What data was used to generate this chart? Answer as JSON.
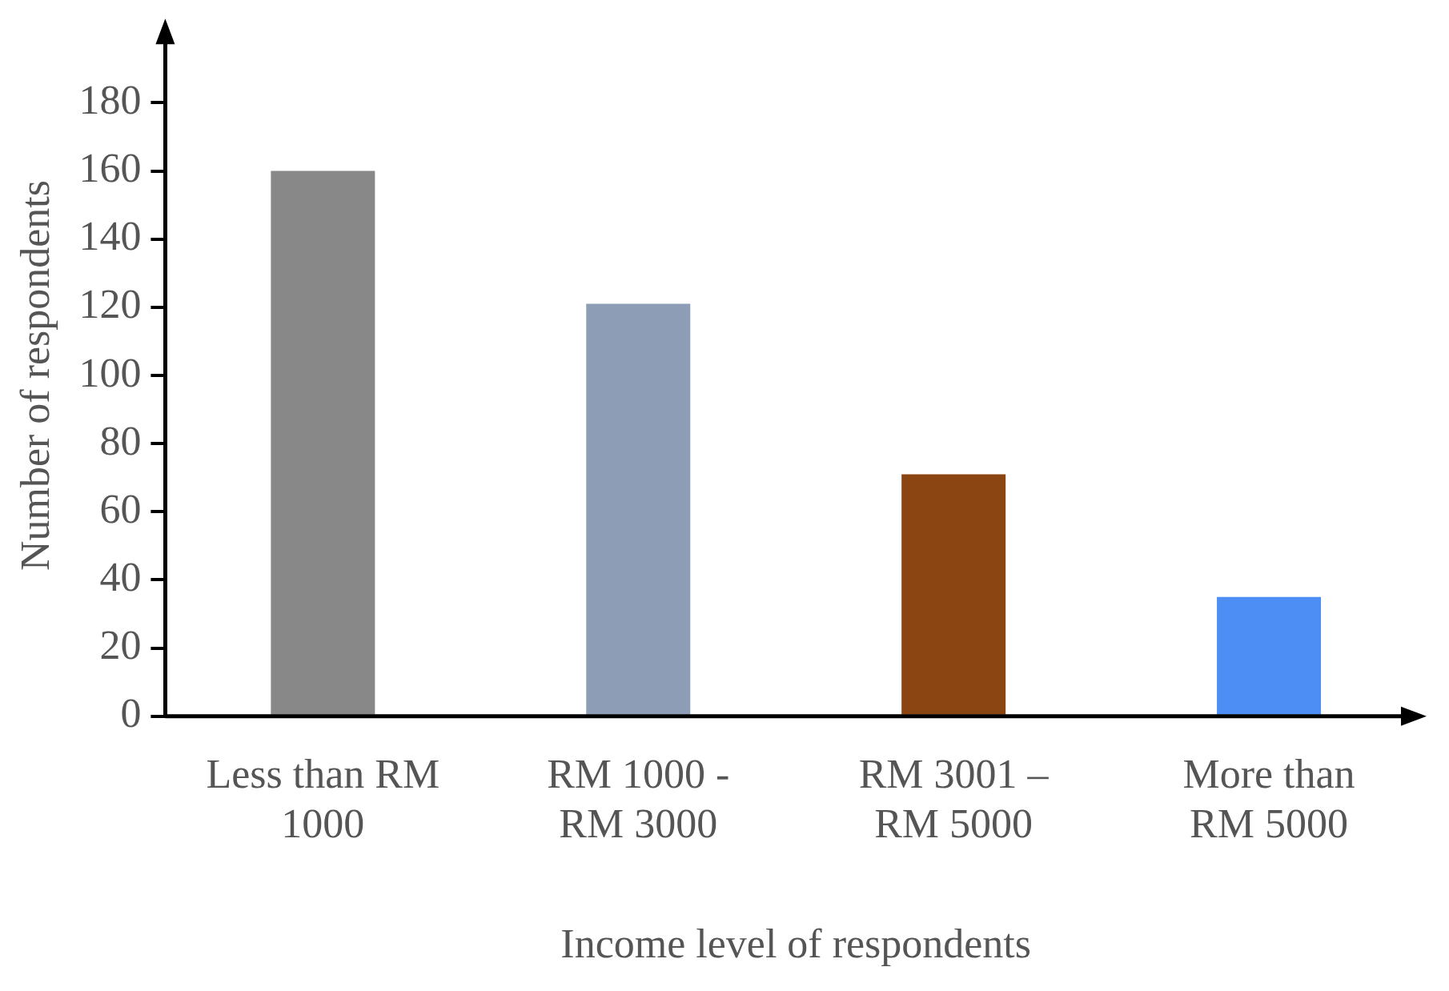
{
  "chart_data": {
    "type": "bar",
    "xlabel": "Income level of respondents",
    "ylabel": "Number of respondents",
    "categories": [
      "Less than RM\n1000",
      "RM 1000 -\nRM 3000",
      "RM 3001 –\nRM 5000",
      "More than\nRM 5000"
    ],
    "values": [
      160,
      121,
      71,
      35
    ],
    "colors": [
      "#888888",
      "#8d9db5",
      "#8b4513",
      "#4d8ef5"
    ],
    "ylim": [
      0,
      200
    ],
    "yticks": [
      0,
      20,
      40,
      60,
      80,
      100,
      120,
      140,
      160,
      180
    ],
    "grid": false,
    "legend": false
  }
}
